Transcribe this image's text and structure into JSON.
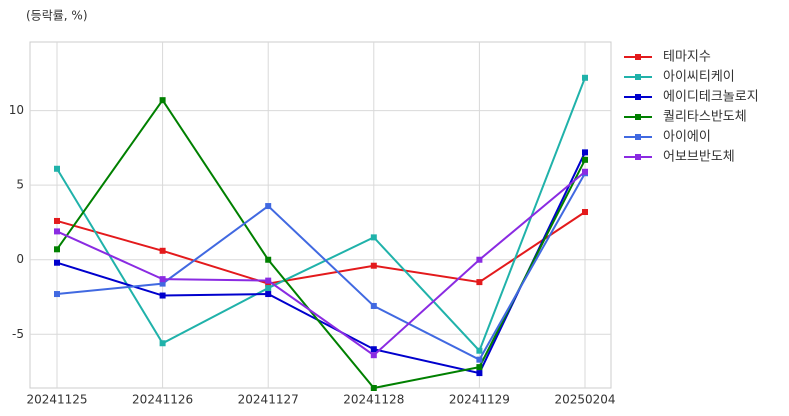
{
  "chart_data": {
    "type": "line",
    "title": "(등락률, %)",
    "categories": [
      "20241125",
      "20241126",
      "20241127",
      "20241128",
      "20241129",
      "20250204"
    ],
    "series": [
      {
        "name": "테마지수",
        "color": "#e31a1c",
        "values": [
          2.6,
          0.6,
          -1.6,
          -0.4,
          -1.5,
          3.2
        ]
      },
      {
        "name": "아이씨티케이",
        "color": "#20b2aa",
        "values": [
          6.1,
          -5.6,
          -1.9,
          1.5,
          -6.1,
          12.2
        ]
      },
      {
        "name": "에이디테크놀로지",
        "color": "#0000cd",
        "values": [
          -0.2,
          -2.4,
          -2.3,
          -6.0,
          -7.6,
          7.2
        ]
      },
      {
        "name": "퀄리타스반도체",
        "color": "#008000",
        "values": [
          0.7,
          10.7,
          0.0,
          -8.6,
          -7.2,
          6.7
        ]
      },
      {
        "name": "아이에이",
        "color": "#4169e1",
        "values": [
          -2.3,
          -1.6,
          3.6,
          -3.1,
          -6.7,
          5.8
        ]
      },
      {
        "name": "어보브반도체",
        "color": "#8a2be2",
        "values": [
          1.9,
          -1.3,
          -1.4,
          -6.4,
          0.0,
          5.9
        ]
      }
    ],
    "ylim": [
      -8.6,
      14.6
    ],
    "yticks": [
      -5,
      0,
      5,
      10
    ],
    "grid": true,
    "legend": "outside-right"
  }
}
